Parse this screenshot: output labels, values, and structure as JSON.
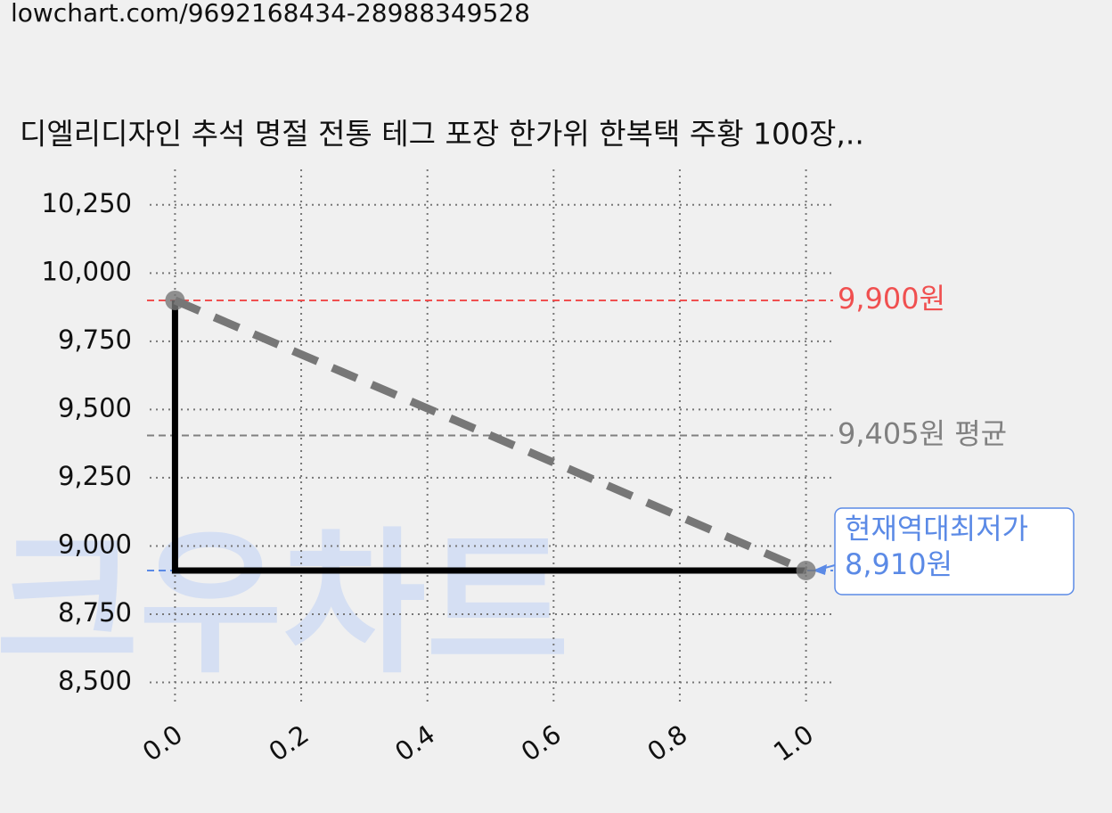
{
  "url": "lowchart.com/9692168434-28988349528",
  "watermark": "크우차트",
  "chart_data": {
    "type": "line",
    "title": "디엘리디자인 추석 명절 전통 테그 포장 한가위 한복택 주황 100장,..",
    "xlim": [
      -0.05,
      1.05
    ],
    "xticks": [
      {
        "value": 0,
        "label": "0.0"
      },
      {
        "value": 0.2,
        "label": "0.2"
      },
      {
        "value": 0.4,
        "label": "0.4"
      },
      {
        "value": 0.6,
        "label": "0.6"
      },
      {
        "value": 0.8,
        "label": "0.8"
      },
      {
        "value": 1,
        "label": "1.0"
      }
    ],
    "ylim": [
      8420,
      10380
    ],
    "yticks": [
      {
        "value": 8500,
        "label": "8,500"
      },
      {
        "value": 8750,
        "label": "8,750"
      },
      {
        "value": 9000,
        "label": "9,000"
      },
      {
        "value": 9250,
        "label": "9,250"
      },
      {
        "value": 9500,
        "label": "9,500"
      },
      {
        "value": 9750,
        "label": "9,750"
      },
      {
        "value": 10000,
        "label": "10,000"
      },
      {
        "value": 10250,
        "label": "10,250"
      }
    ],
    "grid": true,
    "series": [
      {
        "color": "#000000",
        "style": "solid",
        "x": [
          0,
          0,
          1
        ],
        "values": [
          9900,
          8910,
          8910
        ]
      },
      {
        "color": "#777777",
        "style": "dashed",
        "markers": true,
        "x": [
          0,
          1
        ],
        "values": [
          9900,
          8910
        ]
      }
    ],
    "reference_lines": [
      {
        "value": 9900,
        "label": "9,900원",
        "color": "#f05050"
      },
      {
        "value": 9405,
        "label": "9,405원 평균",
        "color": "#808080"
      },
      {
        "value": 8910,
        "label": "8,910원",
        "annotation": "현재역대최저가",
        "color": "#5b8ae6"
      }
    ]
  }
}
